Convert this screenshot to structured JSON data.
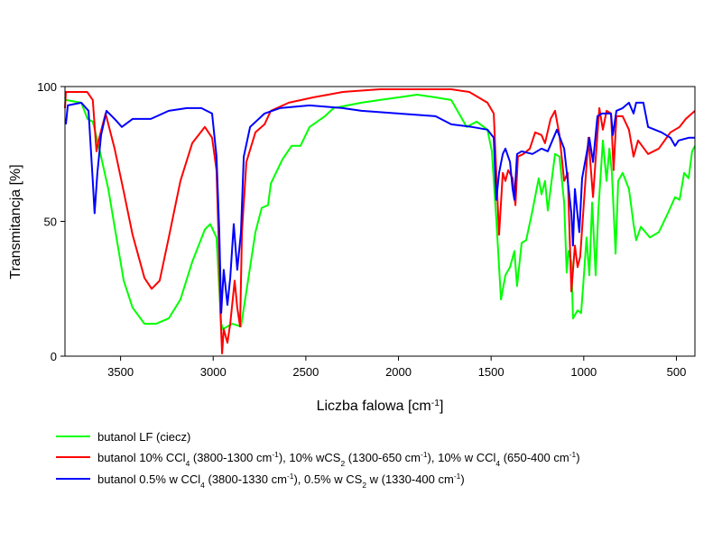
{
  "chart_data": {
    "type": "line",
    "xlabel_parts": [
      {
        "t": "Liczba falowa [cm"
      },
      {
        "sup": "-1"
      },
      {
        "t": "]"
      }
    ],
    "ylabel": "Transmitancja [%]",
    "xlim": [
      3800,
      400
    ],
    "ylim": [
      0,
      100
    ],
    "x_reversed": true,
    "grid": false,
    "legend_position": "bottom",
    "xticks": [
      3500,
      3000,
      2500,
      2000,
      1500,
      1000,
      500
    ],
    "yticks": [
      0,
      50,
      100
    ],
    "series": [
      {
        "color": "#00ff00",
        "legend_parts": [
          {
            "t": "butanol  LF (ciecz)"
          }
        ],
        "points": [
          [
            3800,
            96
          ],
          [
            3795,
            95
          ],
          [
            3712,
            94
          ],
          [
            3678,
            88
          ],
          [
            3650,
            87
          ],
          [
            3615,
            77
          ],
          [
            3566,
            62
          ],
          [
            3532,
            48
          ],
          [
            3483,
            28
          ],
          [
            3435,
            18
          ],
          [
            3371,
            12
          ],
          [
            3308,
            12
          ],
          [
            3240,
            14
          ],
          [
            3177,
            21
          ],
          [
            3113,
            35
          ],
          [
            3045,
            47
          ],
          [
            3016,
            49
          ],
          [
            2982,
            44
          ],
          [
            2972,
            31
          ],
          [
            2957,
            12
          ],
          [
            2947,
            10
          ],
          [
            2899,
            12
          ],
          [
            2850,
            11
          ],
          [
            2821,
            24
          ],
          [
            2772,
            46
          ],
          [
            2738,
            55
          ],
          [
            2704,
            56
          ],
          [
            2689,
            64
          ],
          [
            2626,
            73
          ],
          [
            2577,
            78
          ],
          [
            2529,
            78
          ],
          [
            2480,
            85
          ],
          [
            2397,
            89
          ],
          [
            2350,
            92
          ],
          [
            2200,
            94
          ],
          [
            2100,
            95
          ],
          [
            2000,
            96
          ],
          [
            1900,
            97
          ],
          [
            1800,
            96
          ],
          [
            1715,
            95
          ],
          [
            1632,
            85
          ],
          [
            1578,
            87
          ],
          [
            1520,
            84
          ],
          [
            1496,
            76
          ],
          [
            1472,
            51
          ],
          [
            1447,
            21
          ],
          [
            1423,
            30
          ],
          [
            1398,
            33
          ],
          [
            1374,
            39
          ],
          [
            1360,
            26
          ],
          [
            1335,
            42
          ],
          [
            1311,
            43
          ],
          [
            1277,
            54
          ],
          [
            1243,
            66
          ],
          [
            1228,
            60
          ],
          [
            1209,
            65
          ],
          [
            1194,
            54
          ],
          [
            1155,
            75
          ],
          [
            1131,
            74
          ],
          [
            1106,
            57
          ],
          [
            1092,
            31
          ],
          [
            1082,
            39
          ],
          [
            1067,
            35
          ],
          [
            1058,
            14
          ],
          [
            1033,
            17
          ],
          [
            1014,
            16
          ],
          [
            999,
            30
          ],
          [
            985,
            44
          ],
          [
            970,
            30
          ],
          [
            955,
            57
          ],
          [
            936,
            30
          ],
          [
            921,
            54
          ],
          [
            897,
            80
          ],
          [
            877,
            65
          ],
          [
            862,
            77
          ],
          [
            848,
            68
          ],
          [
            828,
            38
          ],
          [
            814,
            65
          ],
          [
            790,
            68
          ],
          [
            756,
            62
          ],
          [
            731,
            49
          ],
          [
            717,
            43
          ],
          [
            692,
            48
          ],
          [
            643,
            44
          ],
          [
            595,
            46
          ],
          [
            546,
            53
          ],
          [
            507,
            59
          ],
          [
            483,
            58
          ],
          [
            458,
            68
          ],
          [
            434,
            66
          ],
          [
            415,
            76
          ],
          [
            400,
            78
          ]
        ]
      },
      {
        "color": "#ff0000",
        "legend_parts": [
          {
            "t": "butanol 10%  CCl"
          },
          {
            "sub": "4"
          },
          {
            "t": "  (3800-1300 cm"
          },
          {
            "sup": "-1"
          },
          {
            "t": "), 10% wCS"
          },
          {
            "sub": "2"
          },
          {
            "t": " (1300-650 cm"
          },
          {
            "sup": "-1"
          },
          {
            "t": "), 10% w CCl"
          },
          {
            "sub": "4"
          },
          {
            "t": "  (650-400 cm"
          },
          {
            "sup": "-1"
          },
          {
            "t": ")"
          }
        ],
        "points": [
          [
            3800,
            92
          ],
          [
            3795,
            98
          ],
          [
            3680,
            98
          ],
          [
            3650,
            95
          ],
          [
            3630,
            76
          ],
          [
            3615,
            81
          ],
          [
            3581,
            90
          ],
          [
            3532,
            77
          ],
          [
            3483,
            61
          ],
          [
            3435,
            45
          ],
          [
            3371,
            29
          ],
          [
            3332,
            25
          ],
          [
            3289,
            28
          ],
          [
            3240,
            44
          ],
          [
            3177,
            65
          ],
          [
            3113,
            79
          ],
          [
            3045,
            85
          ],
          [
            3006,
            81
          ],
          [
            2982,
            69
          ],
          [
            2967,
            35
          ],
          [
            2962,
            18
          ],
          [
            2952,
            1
          ],
          [
            2943,
            10
          ],
          [
            2923,
            5
          ],
          [
            2908,
            12
          ],
          [
            2884,
            28
          ],
          [
            2870,
            18
          ],
          [
            2855,
            11
          ],
          [
            2845,
            46
          ],
          [
            2821,
            72
          ],
          [
            2772,
            83
          ],
          [
            2723,
            86
          ],
          [
            2689,
            91
          ],
          [
            2592,
            94
          ],
          [
            2460,
            96
          ],
          [
            2300,
            98
          ],
          [
            2100,
            99
          ],
          [
            1900,
            99
          ],
          [
            1715,
            99
          ],
          [
            1618,
            98
          ],
          [
            1520,
            94
          ],
          [
            1486,
            90
          ],
          [
            1472,
            68
          ],
          [
            1457,
            45
          ],
          [
            1437,
            68
          ],
          [
            1423,
            65
          ],
          [
            1408,
            69
          ],
          [
            1384,
            66
          ],
          [
            1369,
            56
          ],
          [
            1355,
            74
          ],
          [
            1326,
            75
          ],
          [
            1291,
            77
          ],
          [
            1262,
            83
          ],
          [
            1228,
            82
          ],
          [
            1209,
            79
          ],
          [
            1179,
            88
          ],
          [
            1155,
            91
          ],
          [
            1131,
            82
          ],
          [
            1106,
            65
          ],
          [
            1087,
            68
          ],
          [
            1067,
            24
          ],
          [
            1048,
            41
          ],
          [
            1033,
            33
          ],
          [
            1019,
            37
          ],
          [
            999,
            57
          ],
          [
            975,
            81
          ],
          [
            950,
            59
          ],
          [
            936,
            73
          ],
          [
            916,
            92
          ],
          [
            897,
            84
          ],
          [
            877,
            91
          ],
          [
            853,
            90
          ],
          [
            839,
            69
          ],
          [
            824,
            89
          ],
          [
            790,
            89
          ],
          [
            756,
            84
          ],
          [
            731,
            74
          ],
          [
            707,
            80
          ],
          [
            653,
            75
          ],
          [
            595,
            77
          ],
          [
            532,
            83
          ],
          [
            483,
            85
          ],
          [
            449,
            88
          ],
          [
            400,
            91
          ]
        ]
      },
      {
        "color": "#0000ff",
        "legend_parts": [
          {
            "t": "butanol   0.5%  w CCl"
          },
          {
            "sub": "4"
          },
          {
            "t": "  (3800-1330 cm"
          },
          {
            "sup": "-1"
          },
          {
            "t": "), 0.5% w CS"
          },
          {
            "sub": "2"
          },
          {
            "t": " w (1330-400 cm"
          },
          {
            "sup": "-1"
          },
          {
            "t": ")"
          }
        ],
        "points": [
          [
            3795,
            86
          ],
          [
            3785,
            93
          ],
          [
            3712,
            94
          ],
          [
            3673,
            91
          ],
          [
            3650,
            65
          ],
          [
            3640,
            53
          ],
          [
            3625,
            68
          ],
          [
            3605,
            82
          ],
          [
            3576,
            91
          ],
          [
            3532,
            88
          ],
          [
            3493,
            85
          ],
          [
            3435,
            88
          ],
          [
            3337,
            88
          ],
          [
            3240,
            91
          ],
          [
            3142,
            92
          ],
          [
            3064,
            92
          ],
          [
            3006,
            90
          ],
          [
            2982,
            74
          ],
          [
            2967,
            46
          ],
          [
            2957,
            16
          ],
          [
            2943,
            32
          ],
          [
            2923,
            19
          ],
          [
            2908,
            29
          ],
          [
            2889,
            49
          ],
          [
            2870,
            32
          ],
          [
            2850,
            46
          ],
          [
            2835,
            74
          ],
          [
            2801,
            85
          ],
          [
            2723,
            90
          ],
          [
            2640,
            92
          ],
          [
            2480,
            93
          ],
          [
            2300,
            92
          ],
          [
            2200,
            91
          ],
          [
            2000,
            90
          ],
          [
            1800,
            89
          ],
          [
            1715,
            86
          ],
          [
            1603,
            85
          ],
          [
            1520,
            84
          ],
          [
            1486,
            81
          ],
          [
            1472,
            58
          ],
          [
            1457,
            68
          ],
          [
            1437,
            75
          ],
          [
            1423,
            77
          ],
          [
            1398,
            72
          ],
          [
            1384,
            62
          ],
          [
            1374,
            58
          ],
          [
            1360,
            75
          ],
          [
            1335,
            76
          ],
          [
            1277,
            75
          ],
          [
            1228,
            77
          ],
          [
            1194,
            76
          ],
          [
            1145,
            84
          ],
          [
            1106,
            77
          ],
          [
            1067,
            53
          ],
          [
            1058,
            41
          ],
          [
            1048,
            62
          ],
          [
            1024,
            46
          ],
          [
            1009,
            66
          ],
          [
            985,
            75
          ],
          [
            970,
            81
          ],
          [
            950,
            72
          ],
          [
            926,
            89
          ],
          [
            902,
            90
          ],
          [
            853,
            90
          ],
          [
            843,
            82
          ],
          [
            824,
            91
          ],
          [
            790,
            92
          ],
          [
            756,
            94
          ],
          [
            731,
            90
          ],
          [
            717,
            94
          ],
          [
            678,
            94
          ],
          [
            653,
            85
          ],
          [
            580,
            83
          ],
          [
            532,
            81
          ],
          [
            507,
            78
          ],
          [
            488,
            80
          ],
          [
            434,
            81
          ],
          [
            400,
            81
          ]
        ]
      }
    ]
  }
}
